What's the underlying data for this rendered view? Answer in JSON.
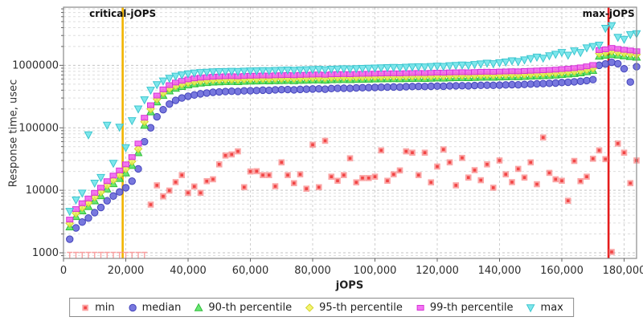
{
  "chart_data": {
    "type": "scatter",
    "xlabel": "jOPS",
    "ylabel": "Response time, usec",
    "y_scale": "log",
    "grid": true,
    "legend_position": "bottom",
    "xlim": [
      0,
      184000
    ],
    "ylim": [
      813,
      8500000
    ],
    "x_ticks": [
      0,
      20000,
      40000,
      60000,
      80000,
      100000,
      120000,
      140000,
      160000,
      180000
    ],
    "x_tick_labels": [
      "0",
      "20,000",
      "40,000",
      "60,000",
      "80,000",
      "100,000",
      "120,000",
      "140,000",
      "160,000",
      "180,000"
    ],
    "y_ticks": [
      1000,
      10000,
      100000,
      1000000
    ],
    "y_tick_labels": [
      "1000",
      "10000",
      "100000",
      "1000000"
    ],
    "annotations": {
      "critical_jops": {
        "label": "critical-jOPS",
        "x": 19000,
        "color": "#f2b400"
      },
      "max_jops": {
        "label": "max-jOPS",
        "x": 175000,
        "color": "#e51c1c"
      }
    },
    "clipped_min_note": "min values for jOPS 2000-26000 are below the 1000 usec axis floor and are drawn as clipped T markers at the bottom axis",
    "jops": [
      2000,
      4000,
      6000,
      8000,
      10000,
      12000,
      14000,
      16000,
      18000,
      20000,
      22000,
      24000,
      26000,
      28000,
      30000,
      32000,
      34000,
      36000,
      38000,
      40000,
      42000,
      44000,
      46000,
      48000,
      50000,
      52000,
      54000,
      56000,
      58000,
      60000,
      62000,
      64000,
      66000,
      68000,
      70000,
      72000,
      74000,
      76000,
      78000,
      80000,
      82000,
      84000,
      86000,
      88000,
      90000,
      92000,
      94000,
      96000,
      98000,
      100000,
      102000,
      104000,
      106000,
      108000,
      110000,
      112000,
      114000,
      116000,
      118000,
      120000,
      122000,
      124000,
      126000,
      128000,
      130000,
      132000,
      134000,
      136000,
      138000,
      140000,
      142000,
      144000,
      146000,
      148000,
      150000,
      152000,
      154000,
      156000,
      158000,
      160000,
      162000,
      164000,
      166000,
      168000,
      170000,
      172000,
      174000,
      176000,
      178000,
      180000,
      182000,
      184000
    ],
    "series": [
      {
        "key": "min",
        "name": "min",
        "marker": "square",
        "color": "#f96969",
        "stroke": "#ef3b3b",
        "values": [
          null,
          null,
          null,
          null,
          null,
          null,
          null,
          null,
          null,
          null,
          null,
          null,
          null,
          5900,
          12000,
          8000,
          9900,
          13500,
          17500,
          9100,
          11500,
          9100,
          14000,
          15000,
          26000,
          36000,
          37500,
          42000,
          11200,
          20000,
          20200,
          17500,
          17500,
          11600,
          28000,
          17500,
          13000,
          18000,
          10600,
          53500,
          11200,
          62000,
          16500,
          14200,
          17500,
          32500,
          13400,
          15700,
          15700,
          16500,
          43500,
          14200,
          18000,
          20800,
          42000,
          40000,
          17500,
          40000,
          13400,
          24000,
          45000,
          28000,
          12000,
          33000,
          16000,
          21000,
          14500,
          26000,
          11000,
          30000,
          18000,
          13500,
          22000,
          16000,
          28000,
          12500,
          70000,
          19000,
          15000,
          14200,
          6800,
          29500,
          14000,
          16500,
          32000,
          43500,
          31500,
          1030,
          56000,
          40000,
          13000,
          30000
        ]
      },
      {
        "key": "median",
        "name": "median",
        "marker": "circle",
        "color": "#6060d8",
        "stroke": "#4444bb",
        "values": [
          1650,
          2500,
          3100,
          3600,
          4400,
          5300,
          6800,
          8100,
          9400,
          11000,
          14000,
          22000,
          60000,
          100000,
          150000,
          195000,
          240000,
          275000,
          300000,
          320000,
          335000,
          350000,
          360000,
          370000,
          375000,
          380000,
          385000,
          382000,
          390000,
          392000,
          395000,
          400000,
          398000,
          405000,
          408000,
          410000,
          405000,
          412000,
          415000,
          418000,
          420000,
          415000,
          425000,
          428000,
          430000,
          428000,
          435000,
          438000,
          440000,
          442000,
          445000,
          448000,
          450000,
          448000,
          455000,
          458000,
          460000,
          458000,
          462000,
          465000,
          462000,
          468000,
          470000,
          472000,
          470000,
          475000,
          478000,
          480000,
          478000,
          482000,
          485000,
          490000,
          488000,
          495000,
          500000,
          505000,
          510000,
          515000,
          520000,
          530000,
          535000,
          545000,
          555000,
          570000,
          590000,
          1000000,
          1050000,
          1120000,
          1060000,
          880000,
          540000,
          950000
        ]
      },
      {
        "key": "p90",
        "name": "90-th percentile",
        "marker": "triangle-up",
        "color": "#4fe35a",
        "stroke": "#2fbe3a",
        "values": [
          2600,
          3800,
          4700,
          5500,
          6800,
          8200,
          10500,
          12800,
          15500,
          19000,
          25000,
          40000,
          110000,
          180000,
          260000,
          330000,
          390000,
          430000,
          460000,
          485000,
          505000,
          520000,
          530000,
          540000,
          545000,
          550000,
          552000,
          548000,
          556000,
          560000,
          562000,
          566000,
          564000,
          570000,
          572000,
          575000,
          570000,
          578000,
          580000,
          584000,
          586000,
          580000,
          590000,
          592000,
          595000,
          592000,
          598000,
          600000,
          602000,
          605000,
          608000,
          610000,
          612000,
          610000,
          615000,
          618000,
          620000,
          618000,
          622000,
          628000,
          625000,
          632000,
          635000,
          638000,
          636000,
          640000,
          645000,
          648000,
          645000,
          652000,
          655000,
          660000,
          658000,
          665000,
          672000,
          678000,
          685000,
          692000,
          700000,
          715000,
          725000,
          740000,
          760000,
          790000,
          830000,
          1400000,
          1450000,
          1500000,
          1460000,
          1420000,
          1380000,
          1350000
        ]
      },
      {
        "key": "p95",
        "name": "95-th percentile",
        "marker": "diamond",
        "color": "#f2f258",
        "stroke": "#d3d32c",
        "values": [
          2950,
          4300,
          5300,
          6300,
          7800,
          9400,
          12000,
          14700,
          17800,
          22000,
          29000,
          46000,
          125000,
          200000,
          288000,
          362000,
          425000,
          468000,
          500000,
          527000,
          548000,
          562000,
          572000,
          582000,
          588000,
          592000,
          595000,
          591000,
          599000,
          604000,
          606000,
          610000,
          608000,
          614000,
          616000,
          620000,
          615000,
          623000,
          626000,
          630000,
          632000,
          626000,
          636000,
          639000,
          642000,
          639000,
          645000,
          648000,
          650000,
          653000,
          656000,
          659000,
          661000,
          659000,
          664000,
          667000,
          670000,
          668000,
          672000,
          678000,
          675000,
          683000,
          686000,
          689000,
          687000,
          692000,
          697000,
          700000,
          697000,
          704000,
          708000,
          713000,
          711000,
          719000,
          726000,
          733000,
          740000,
          748000,
          757000,
          773000,
          784000,
          800000,
          822000,
          854000,
          898000,
          1550000,
          1600000,
          1680000,
          1620000,
          1570000,
          1530000,
          1490000
        ]
      },
      {
        "key": "p99",
        "name": "99-th percentile",
        "marker": "rect",
        "color": "#f25cf2",
        "stroke": "#d534d5",
        "values": [
          3400,
          5000,
          6200,
          7400,
          9100,
          11000,
          14000,
          17200,
          20800,
          26000,
          34000,
          56000,
          145000,
          230000,
          328000,
          412000,
          482000,
          530000,
          565000,
          595000,
          618000,
          634000,
          645000,
          656000,
          663000,
          668000,
          671000,
          666000,
          675000,
          681000,
          683000,
          688000,
          685000,
          692000,
          695000,
          699000,
          693000,
          702000,
          706000,
          710000,
          713000,
          706000,
          717000,
          720000,
          724000,
          720000,
          727000,
          731000,
          733000,
          736000,
          740000,
          743000,
          745000,
          743000,
          749000,
          752000,
          755000,
          753000,
          758000,
          764000,
          761000,
          770000,
          773000,
          777000,
          774000,
          780000,
          786000,
          789000,
          786000,
          794000,
          798000,
          804000,
          801000,
          810000,
          818000,
          826000,
          834000,
          843000,
          853000,
          871000,
          884000,
          902000,
          927000,
          963000,
          1012000,
          1750000,
          1800000,
          1900000,
          1830000,
          1770000,
          1730000,
          1680000
        ]
      },
      {
        "key": "max",
        "name": "max",
        "marker": "triangle-down",
        "color": "#67e3e9",
        "stroke": "#3cc6cf",
        "values": [
          4600,
          7000,
          9000,
          77000,
          13000,
          16000,
          110000,
          27000,
          102000,
          48000,
          130000,
          200000,
          280000,
          400000,
          490000,
          560000,
          620000,
          670000,
          700000,
          730000,
          750000,
          765000,
          775000,
          785000,
          790000,
          795000,
          800000,
          793000,
          805000,
          812000,
          815000,
          822000,
          818000,
          828000,
          832000,
          838000,
          830000,
          842000,
          848000,
          855000,
          860000,
          850000,
          865000,
          872000,
          880000,
          873000,
          885000,
          892000,
          898000,
          905000,
          912000,
          918000,
          925000,
          918000,
          932000,
          940000,
          948000,
          942000,
          955000,
          970000,
          960000,
          985000,
          995000,
          1010000,
          1000000,
          1030000,
          1050000,
          1080000,
          1060000,
          1100000,
          1130000,
          1180000,
          1150000,
          1220000,
          1280000,
          1350000,
          1300000,
          1420000,
          1500000,
          1600000,
          1450000,
          1700000,
          1600000,
          1900000,
          2000000,
          2100000,
          3900000,
          4300000,
          2800000,
          2600000,
          3100000,
          3200000
        ]
      }
    ]
  }
}
